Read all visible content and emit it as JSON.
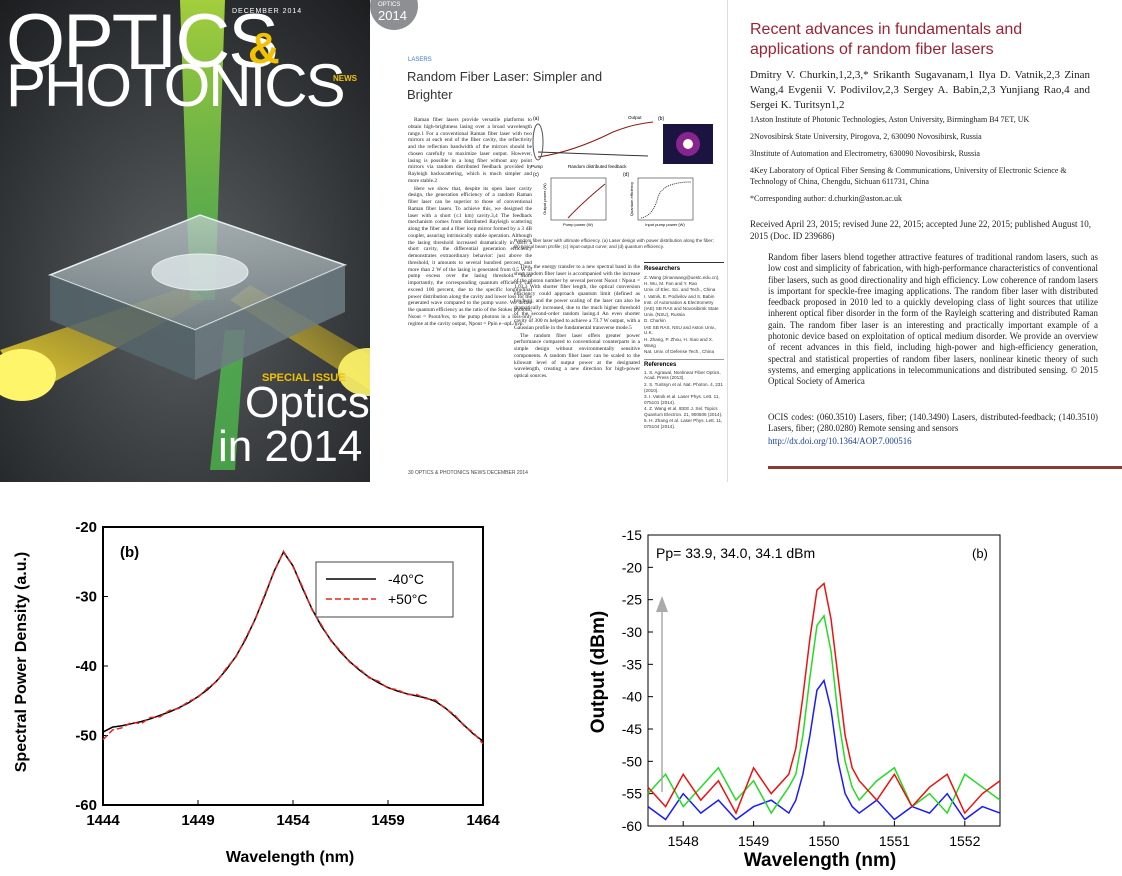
{
  "cover": {
    "date": "DECEMBER 2014",
    "title_top": "OPTICS",
    "amp": "&",
    "title_bottom": "PHOTONICS",
    "news": "NEWS",
    "special": "SPECIAL ISSUE",
    "big_top": "Optics",
    "big_bottom": "in 2014"
  },
  "article": {
    "badge_top": "OPTICS",
    "badge_bottom": "2014",
    "section": "LASERS",
    "title": "Random Fiber Laser: Simpler and Brighter",
    "col1": [
      "Raman fiber lasers provide versatile platforms to obtain high-brightness lasing over a broad wavelength range.1 For a conventional Raman fiber laser with two mirrors at each end of the fiber cavity, the reflectivity and the reflection bandwidth of the mirrors should be chosen carefully to maximize laser output. However, lasing is possible in a long fiber without any point mirrors via random distributed feedback provided by Rayleigh backscattering, which is much simpler and more stable.2",
      "Here we show that, despite its open laser cavity design, the generation efficiency of a random Raman fiber laser can be superior to those of conventional Raman fiber lasers. To achieve this, we designed the laser with a short (≤1 km) cavity.3,4 The feedback mechanism comes from distributed Rayleigh scattering along the fiber and a fiber loop mirror formed by a 3 dB coupler, assuring intrinsically stable operation. Although the lasing threshold increased dramatically in such a short cavity, the differential generation efficiency demonstrates extraordinary behavior: just above the threshold, it amounts to several hundred percent, and more than 2 W of the lasing is generated from 0.5 W of pump excess over the lasing threshold. More importantly, the corresponding quantum efficiency can exceed 100 percent, due to the specific longitudinal power distribution along the cavity and lower loss for the generated wave compared to the pump wave. We define the quantum efficiency as the ratio of the Stokes photons, Nsout = Psout/hνs, to the pump photons in a loss-only regime at the cavity output, Npout = Ppin e−αpL/hνp."
    ],
    "col2": [
      "Thus, the energy transfer to a new spectral band in the short random fiber laser is accompanied with the increase of the photon number by several percent Nsout / Npout = 1.03.3 With shorter fiber length, the optical conversion efficiency could approach quantum limit (defined as hνs/hνp), and the power scaling of the laser can also be dramatically increased, due to the much higher threshold of the second-order random lasing.4 An even shorter cavity of 300 m helped to achieve a 73.7 W output, with a Gaussian profile in the fundamental transverse mode.5",
      "The random fiber laser offers greater power performance compared to conventional counterparts in a simple design without environmentally sensitive components. A random fiber laser can be scaled to the kilowatt level of output power at the designated wavelength, creating a new direction for high-power optical sources."
    ],
    "figure": {
      "a": "(a)",
      "b": "(b)",
      "c": "(c)",
      "d": "(d)",
      "output": "Output",
      "pump": "Pump",
      "feedback": "Random distributed feedback",
      "c_x": "Pump power (W)",
      "c_y": "Output power (W)",
      "d_x": "Input pump power (W)",
      "d_y": "Quantum efficiency"
    },
    "caption": "Random fiber laser with ultimate efficiency. (a) Laser design with power distribution along the fiber; (b) typical beam profile; (c) input-output curve; and (d) quantum efficiency.",
    "researchers_heading": "Researchers",
    "researchers": [
      "Z. Wang (zinanwang@uestc.edu.cn), H. Wu, M. Fan and Y. Rao",
      "Univ. of Elec. Sci. and Tech., China",
      "I. Vatnik, E. Podivilov and S. Babin",
      "Inst. of Automation & Electrometry (IAE) SB RAS and Novosibirsk State Univ. (NSU), Russia",
      "D. Churkin",
      "IAE SB RAS, NSU and Aston Univ., U.K.",
      "H. Zhang, P. Zhou, H. Xiao and X. Wang",
      "Nat. Univ. of Defense Tech., China"
    ],
    "references_heading": "References",
    "references": [
      "1. S. Agrawal, Nonlinear Fiber Optics, Acad. Press (2013).",
      "2. S. Turitsyn et al. Nat. Photon. 4, 231 (2010).",
      "3. I. Vatnik et al. Laser Phys. Lett. 11, 075101 (2014).",
      "4. Z. Wang et al. IEEE J. Sel. Topics Quantum Electron. 21, 900506 (2014).",
      "5. H. Zhang et al. Laser Phys. Lett. 11, 075104 (2014)."
    ],
    "footer": "30  OPTICS & PHOTONICS NEWS  DECEMBER 2014"
  },
  "paper": {
    "title": "Recent advances in fundamentals and applications of random fiber lasers",
    "authors": "Dmitry V. Churkin,1,2,3,* Srikanth Sugavanam,1 Ilya D. Vatnik,2,3 Zinan Wang,4 Evgenii V. Podivilov,2,3 Sergey A. Babin,2,3 Yunjiang Rao,4 and Sergei K. Turitsyn1,2",
    "affiliations": [
      "1Aston Institute of Photonic Technologies, Aston University, Birmingham B4 7ET, UK",
      "2Novosibirsk State University, Pirogova, 2, 630090 Novosibirsk, Russia",
      "3Institute of Automation and Electrometry, 630090 Novosibirsk, Russia",
      "4Key Laboratory of Optical Fiber Sensing & Communications, University of Electronic Science & Technology of China, Chengdu, Sichuan 611731, China",
      "*Corresponding author: d.churkin@aston.ac.uk"
    ],
    "received": "Received April 23, 2015; revised June 22, 2015; accepted June 22, 2015; published August 10, 2015 (Doc. ID 239686)",
    "abstract": "Random fiber lasers blend together attractive features of traditional random lasers, such as low cost and simplicity of fabrication, with high-performance characteristics of conventional fiber lasers, such as good directionality and high efficiency. Low coherence of random lasers is important for speckle-free imaging applications. The random fiber laser with distributed feedback proposed in 2010 led to a quickly developing class of light sources that utilize inherent optical fiber disorder in the form of the Rayleigh scattering and distributed Raman gain. The random fiber laser is an interesting and practically important example of a photonic device based on exploitation of optical medium disorder. We provide an overview of recent advances in this field, including high-power and high-efficiency generation, spectral and statistical properties of random fiber lasers, nonlinear kinetic theory of such systems, and emerging applications in telecommunications and distributed sensing. © 2015 Optical Society of America",
    "ocis": "OCIS codes: (060.3510) Lasers, fiber; (140.3490) Lasers, distributed-feedback; (140.3510) Lasers, fiber; (280.0280) Remote sensing and sensors",
    "doi": "http://dx.doi.org/10.1364/AOP.7.000516"
  },
  "chart_data": [
    {
      "type": "line",
      "annotation": "(b)",
      "x_label": "Wavelength (nm)",
      "y_label": "Spectral Power Density (a.u.)",
      "x": [
        1444,
        1444.5,
        1445,
        1445.5,
        1446,
        1446.5,
        1447,
        1447.5,
        1448,
        1448.5,
        1449,
        1449.5,
        1450,
        1450.5,
        1451,
        1451.5,
        1452,
        1452.5,
        1453,
        1453.5,
        1454,
        1454.5,
        1455,
        1455.5,
        1456,
        1456.5,
        1457,
        1457.5,
        1458,
        1458.5,
        1459,
        1459.5,
        1460,
        1460.5,
        1461,
        1461.5,
        1462,
        1462.5,
        1463,
        1463.5,
        1464
      ],
      "series": [
        {
          "name": "-40°C",
          "color": "#000000",
          "style": "solid",
          "values": [
            -49.5,
            -48.8,
            -48.6,
            -48.3,
            -48.0,
            -47.6,
            -47.1,
            -46.6,
            -46.0,
            -45.3,
            -44.4,
            -43.4,
            -42.1,
            -40.5,
            -38.6,
            -36.2,
            -33.3,
            -30.0,
            -26.4,
            -23.6,
            -25.6,
            -28.8,
            -31.8,
            -34.3,
            -36.3,
            -38.0,
            -39.4,
            -40.6,
            -41.6,
            -42.4,
            -43.1,
            -43.6,
            -44.0,
            -44.3,
            -44.6,
            -45.1,
            -46.0,
            -47.2,
            -48.5,
            -49.8,
            -50.8
          ]
        },
        {
          "name": "+50°C",
          "color": "#e8231f",
          "style": "dashed",
          "values": [
            -50.6,
            -49.2,
            -48.9,
            -48.1,
            -48.3,
            -47.4,
            -47.3,
            -46.4,
            -46.1,
            -45.1,
            -44.5,
            -43.2,
            -42.2,
            -40.3,
            -38.7,
            -36.0,
            -33.4,
            -29.8,
            -26.5,
            -23.5,
            -25.7,
            -28.6,
            -31.9,
            -34.1,
            -36.4,
            -37.8,
            -39.5,
            -40.4,
            -41.7,
            -42.2,
            -43.2,
            -43.4,
            -44.1,
            -44.1,
            -44.7,
            -44.9,
            -46.1,
            -47.0,
            -48.6,
            -49.6,
            -51.2
          ]
        }
      ],
      "xlim": [
        1444,
        1464
      ],
      "xticks": [
        1444,
        1449,
        1454,
        1459,
        1464
      ],
      "ylim": [
        -60,
        -20
      ],
      "yticks": [
        -60,
        -50,
        -40,
        -30,
        -20
      ],
      "legend": "upper right",
      "grid": false
    },
    {
      "type": "line",
      "annotation": "Pp= 33.9, 34.0, 34.1 dBm",
      "panel": "(b)",
      "x_label": "Wavelength (nm)",
      "y_label": "Output (dBm)",
      "x": [
        1547.5,
        1547.75,
        1548,
        1548.25,
        1548.5,
        1548.75,
        1549,
        1549.25,
        1549.5,
        1549.6,
        1549.7,
        1549.8,
        1549.9,
        1550.0,
        1550.1,
        1550.2,
        1550.3,
        1550.4,
        1550.5,
        1550.75,
        1551,
        1551.25,
        1551.5,
        1551.75,
        1552,
        1552.25,
        1552.5
      ],
      "series": [
        {
          "color": "#1a1aff",
          "values": [
            -57,
            -59,
            -55,
            -58,
            -56,
            -59,
            -57,
            -56,
            -58,
            -56,
            -52,
            -46,
            -39,
            -37.5,
            -42,
            -50,
            -55,
            -57,
            -58,
            -56,
            -59,
            -57,
            -58,
            -55,
            -59,
            -57,
            -58
          ]
        },
        {
          "color": "#22dd22",
          "values": [
            -55,
            -52,
            -57,
            -54,
            -51,
            -56,
            -53,
            -58,
            -54,
            -52,
            -46,
            -37,
            -29,
            -27.5,
            -33,
            -43,
            -50,
            -54,
            -56,
            -53,
            -51,
            -57,
            -55,
            -58,
            -52,
            -54,
            -56
          ]
        },
        {
          "color": "#ee1111",
          "values": [
            -54,
            -57,
            -52,
            -56,
            -53,
            -58,
            -51,
            -55,
            -52,
            -48,
            -40,
            -31,
            -23.5,
            -22.5,
            -28,
            -37,
            -46,
            -51,
            -53,
            -56,
            -52,
            -57,
            -54,
            -52,
            -58,
            -55,
            -53
          ]
        }
      ],
      "xlim": [
        1547.5,
        1552.5
      ],
      "xticks": [
        1548,
        1549,
        1550,
        1551,
        1552
      ],
      "ylim": [
        -60,
        -15
      ],
      "yticks": [
        -60,
        -55,
        -50,
        -45,
        -40,
        -35,
        -30,
        -25,
        -20,
        -15
      ],
      "grid": false
    }
  ]
}
